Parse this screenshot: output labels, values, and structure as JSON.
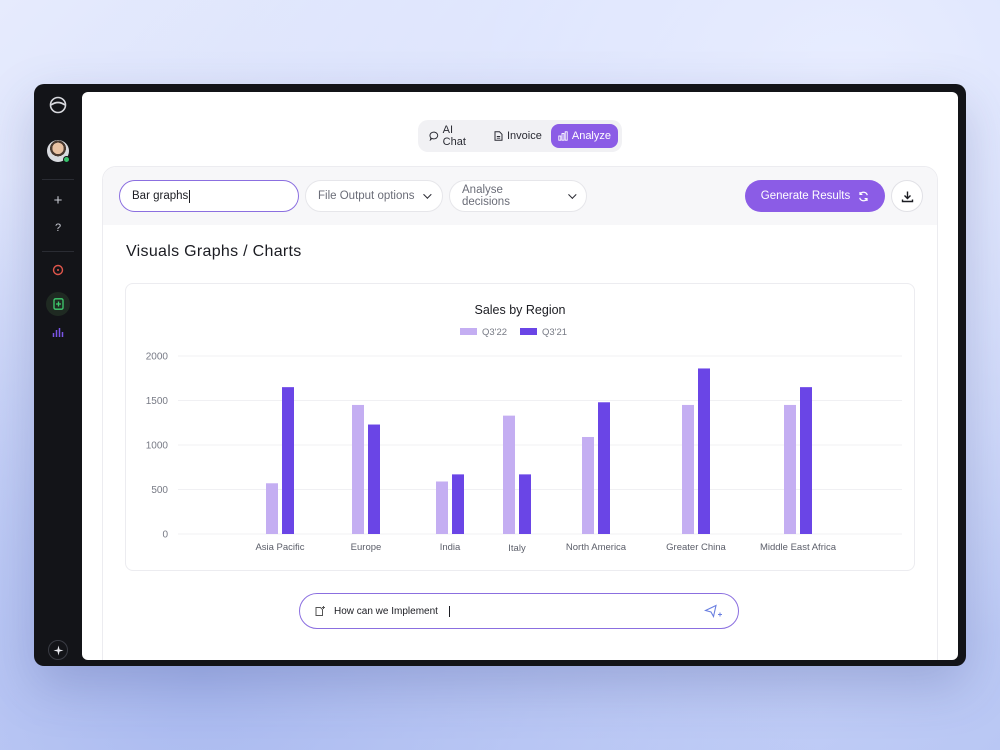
{
  "tabs": [
    {
      "label": "AI Chat",
      "icon": "chat-icon",
      "active": false
    },
    {
      "label": "Invoice",
      "icon": "invoice-icon",
      "active": false
    },
    {
      "label": "Analyze",
      "icon": "analyze-icon",
      "active": true
    }
  ],
  "toolbar": {
    "search_value": "Bar graphs",
    "file_output_label": "File Output options",
    "analyse_label": "Analyse decisions",
    "generate_label": "Generate Results"
  },
  "section_title": "Visuals Graphs / Charts",
  "composer": {
    "value": "How can we Implement "
  },
  "colors": {
    "accent": "#8b5ce6",
    "series_light": "#c4aef2",
    "series_dark": "#6a45e6"
  },
  "chart_data": {
    "type": "bar",
    "title": "Sales by Region",
    "categories": [
      "Asia Pacific",
      "Europe",
      "India",
      "Italy",
      "North America",
      "Greater China",
      "Middle East Africa"
    ],
    "series": [
      {
        "name": "Q3'22",
        "values": [
          570,
          1450,
          590,
          1330,
          1090,
          1450,
          1450
        ]
      },
      {
        "name": "Q3'21",
        "values": [
          1650,
          1230,
          670,
          670,
          1480,
          1860,
          1650
        ]
      }
    ],
    "ylim": [
      0,
      2000
    ],
    "yticks": [
      0,
      500,
      1000,
      1500,
      2000
    ],
    "grid": true,
    "legend": "top-center"
  }
}
